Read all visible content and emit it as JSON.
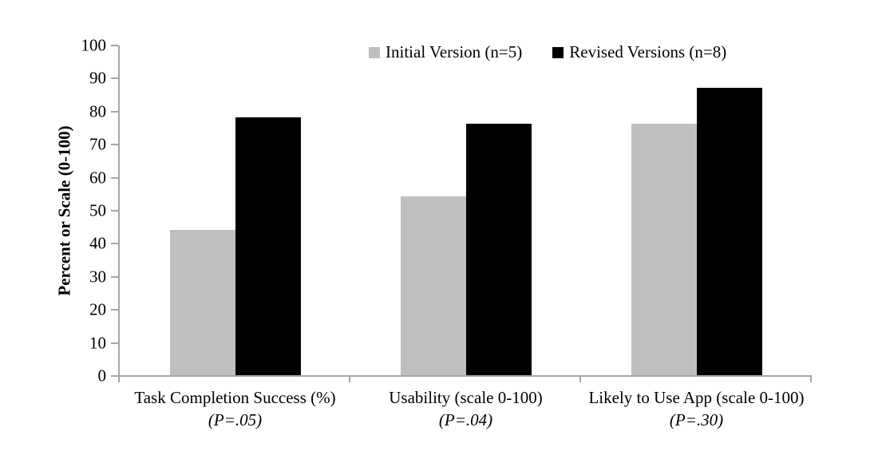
{
  "chart_data": {
    "type": "bar",
    "title": "",
    "ylabel": "Percent or Scale (0-100)",
    "xlabel": "",
    "ylim": [
      0,
      100
    ],
    "yticks": [
      0,
      10,
      20,
      30,
      40,
      50,
      60,
      70,
      80,
      90,
      100
    ],
    "grid": false,
    "legend_position": "top-center",
    "categories": [
      {
        "label": "Task Completion Success (%)",
        "p_label": "(P=.05)"
      },
      {
        "label": "Usability (scale 0-100)",
        "p_label": "(P=.04)"
      },
      {
        "label": "Likely to Use App (scale 0-100)",
        "p_label": "(P=.30)"
      }
    ],
    "series": [
      {
        "name": "Initial Version (n=5)",
        "color": "#bfbfbf",
        "values": [
          44,
          54,
          76
        ]
      },
      {
        "name": "Revised Versions (n=8)",
        "color": "#000000",
        "values": [
          78,
          76,
          87
        ]
      }
    ]
  },
  "colors": {
    "axis": "#a6a6a6",
    "text": "#000000",
    "background": "#ffffff"
  }
}
